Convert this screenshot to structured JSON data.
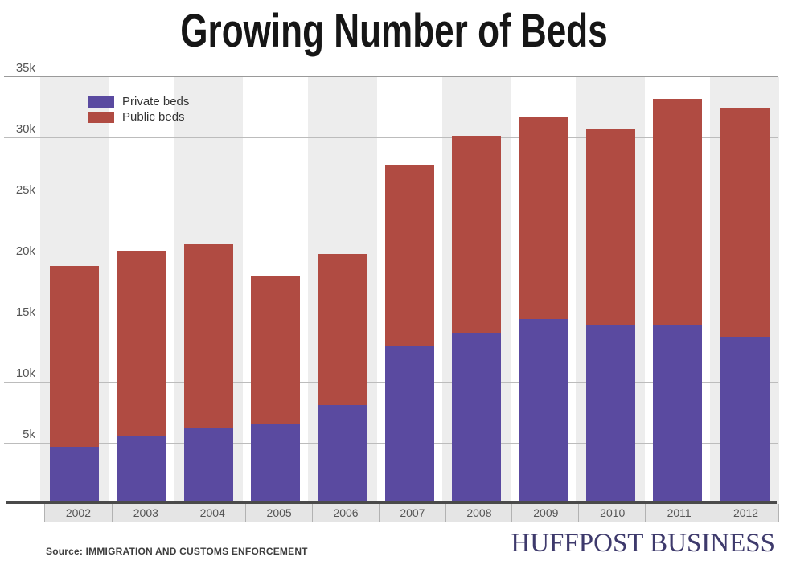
{
  "title": "Growing Number of Beds",
  "legend": {
    "items": [
      {
        "label": "Private beds",
        "color": "#5a4aa0"
      },
      {
        "label": "Public beds",
        "color": "#b04b42"
      }
    ]
  },
  "chart_data": {
    "type": "bar",
    "stacked": true,
    "title": "Growing Number of Beds",
    "categories": [
      "2002",
      "2003",
      "2004",
      "2005",
      "2006",
      "2007",
      "2008",
      "2009",
      "2010",
      "2011",
      "2012"
    ],
    "series": [
      {
        "name": "Private beds",
        "color": "#5a4aa0",
        "values": [
          4700,
          5500,
          6200,
          6500,
          8100,
          12900,
          14000,
          15100,
          14600,
          14700,
          13700
        ]
      },
      {
        "name": "Public beds",
        "color": "#b04b42",
        "values": [
          14800,
          15200,
          15100,
          12200,
          12400,
          14900,
          16100,
          16600,
          16100,
          18500,
          18700
        ]
      }
    ],
    "stacked_totals": [
      19500,
      20700,
      21300,
      18700,
      20500,
      27800,
      30100,
      31700,
      30700,
      33200,
      32400
    ],
    "xlabel": "",
    "ylabel": "",
    "ylim": [
      0,
      35000
    ],
    "ytick_labels": [
      "5k",
      "10k",
      "15k",
      "20k",
      "25k",
      "30k",
      "35k"
    ],
    "ytick_values": [
      5000,
      10000,
      15000,
      20000,
      25000,
      30000,
      35000
    ],
    "grid": true,
    "legend_position": "top-left"
  },
  "footer": {
    "source": "Source: IMMIGRATION AND CUSTOMS ENFORCEMENT",
    "brand": "HUFFPOST BUSINESS"
  }
}
